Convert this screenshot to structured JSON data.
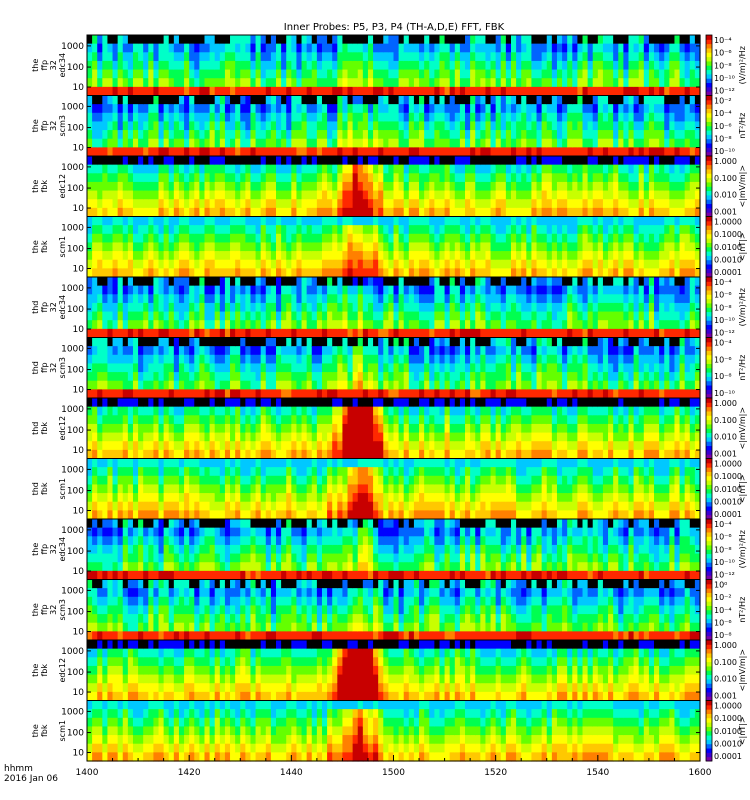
{
  "title": "Inner Probes: P5, P3, P4 (TH-A,D,E) FFT, FBK",
  "footer": {
    "time_label": "hhmm",
    "date_label": "2016 Jan 06"
  },
  "chart_data": {
    "type": "heatmap",
    "x_axis": {
      "ticks": [
        "1400",
        "1420",
        "1440",
        "1500",
        "1520",
        "1540",
        "1600"
      ],
      "minor_ticks_per_interval": 4
    },
    "colormap": [
      "#7a00a8",
      "#3c00d2",
      "#0000ff",
      "#0064ff",
      "#00c8ff",
      "#00ffc8",
      "#00ff50",
      "#64ff00",
      "#c8ff00",
      "#ffff00",
      "#ffc800",
      "#ff8000",
      "#ff2800",
      "#c80000"
    ],
    "panels": [
      {
        "probe": "the",
        "kind": "ffp",
        "line1": "the",
        "line2": "ffp",
        "line3": "32",
        "line4": "edc34",
        "yticks": [
          "1000",
          "100",
          "10"
        ],
        "cb_ticks": [
          "10⁻⁴",
          "10⁻⁶",
          "10⁻⁸",
          "10⁻¹⁰",
          "10⁻¹²"
        ],
        "cb_label": "(V/m)²/Hz",
        "activity": 0.3
      },
      {
        "probe": "the",
        "kind": "ffp",
        "line1": "the",
        "line2": "ffp",
        "line3": "32",
        "line4": "scm3",
        "yticks": [
          "1000",
          "100",
          "10"
        ],
        "cb_ticks": [
          "10⁻²",
          "10⁻⁴",
          "10⁻⁶",
          "10⁻⁸",
          "10⁻¹⁰"
        ],
        "cb_label": "nT²/Hz",
        "activity": 0.3
      },
      {
        "probe": "the",
        "kind": "fbk",
        "line1": "the",
        "line2": "fbk",
        "line3": "",
        "line4": "edc12",
        "yticks": [
          "1000",
          "100",
          "10"
        ],
        "cb_ticks": [
          "1.000",
          "0.100",
          "0.010",
          "0.001"
        ],
        "cb_label": "<|mV/m|>",
        "activity": 0.5
      },
      {
        "probe": "the",
        "kind": "fbk",
        "line1": "the",
        "line2": "fbk",
        "line3": "",
        "line4": "scm1",
        "yticks": [
          "1000",
          "100",
          "10"
        ],
        "cb_ticks": [
          "1.0000",
          "0.1000",
          "0.0100",
          "0.0010",
          "0.0001"
        ],
        "cb_label": "<|nT|>",
        "activity": 0.3
      },
      {
        "probe": "thd",
        "kind": "ffp",
        "line1": "thd",
        "line2": "ffp",
        "line3": "32",
        "line4": "edc34",
        "yticks": [
          "1000",
          "100",
          "10"
        ],
        "cb_ticks": [
          "10⁻⁴",
          "10⁻⁶",
          "10⁻⁸",
          "10⁻¹⁰",
          "10⁻¹²"
        ],
        "cb_label": "(V/m)²/Hz",
        "activity": 0.3
      },
      {
        "probe": "thd",
        "kind": "ffp",
        "line1": "thd",
        "line2": "ffp",
        "line3": "32",
        "line4": "scm3",
        "yticks": [
          "1000",
          "100",
          "10"
        ],
        "cb_ticks": [
          "10⁻⁴",
          "10⁻⁶",
          "10⁻⁸",
          "10⁻¹⁰"
        ],
        "cb_label": "nT²/Hz",
        "activity": 0.3
      },
      {
        "probe": "thd",
        "kind": "fbk",
        "line1": "thd",
        "line2": "fbk",
        "line3": "",
        "line4": "edc12",
        "yticks": [
          "1000",
          "100",
          "10"
        ],
        "cb_ticks": [
          "1.000",
          "0.100",
          "0.010",
          "0.001"
        ],
        "cb_label": "<|mV/m|>",
        "activity": 0.9
      },
      {
        "probe": "thd",
        "kind": "fbk",
        "line1": "thd",
        "line2": "fbk",
        "line3": "",
        "line4": "scm1",
        "yticks": [
          "1000",
          "100",
          "10"
        ],
        "cb_ticks": [
          "1.0000",
          "0.1000",
          "0.0100",
          "0.0010",
          "0.0001"
        ],
        "cb_label": "<|nT|>",
        "activity": 0.4
      },
      {
        "probe": "the",
        "kind": "ffp",
        "line1": "the",
        "line2": "ffp",
        "line3": "32",
        "line4": "edc34",
        "yticks": [
          "1000",
          "100",
          "10"
        ],
        "cb_ticks": [
          "10⁻⁴",
          "10⁻⁶",
          "10⁻⁸",
          "10⁻¹⁰",
          "10⁻¹²"
        ],
        "cb_label": "(V/m)²/Hz",
        "activity": 0.3
      },
      {
        "probe": "the",
        "kind": "ffp",
        "line1": "the",
        "line2": "ffp",
        "line3": "32",
        "line4": "scm3",
        "yticks": [
          "1000",
          "100",
          "10"
        ],
        "cb_ticks": [
          "10⁰",
          "10⁻²",
          "10⁻⁴",
          "10⁻⁶",
          "10⁻⁸"
        ],
        "cb_label": "nT²/Hz",
        "activity": 0.3
      },
      {
        "probe": "the",
        "kind": "fbk",
        "line1": "the",
        "line2": "fbk",
        "line3": "",
        "line4": "edc12",
        "yticks": [
          "1000",
          "100",
          "10"
        ],
        "cb_ticks": [
          "1.000",
          "0.100",
          "0.010",
          "0.001"
        ],
        "cb_label": "<|mV/m|>",
        "activity": 0.9
      },
      {
        "probe": "the",
        "kind": "fbk",
        "line1": "the",
        "line2": "fbk",
        "line3": "",
        "line4": "scm1",
        "yticks": [
          "1000",
          "100",
          "10"
        ],
        "cb_ticks": [
          "1.0000",
          "0.1000",
          "0.0100",
          "0.0010",
          "0.0001"
        ],
        "cb_label": "<|nT|>",
        "activity": 0.4
      }
    ]
  }
}
